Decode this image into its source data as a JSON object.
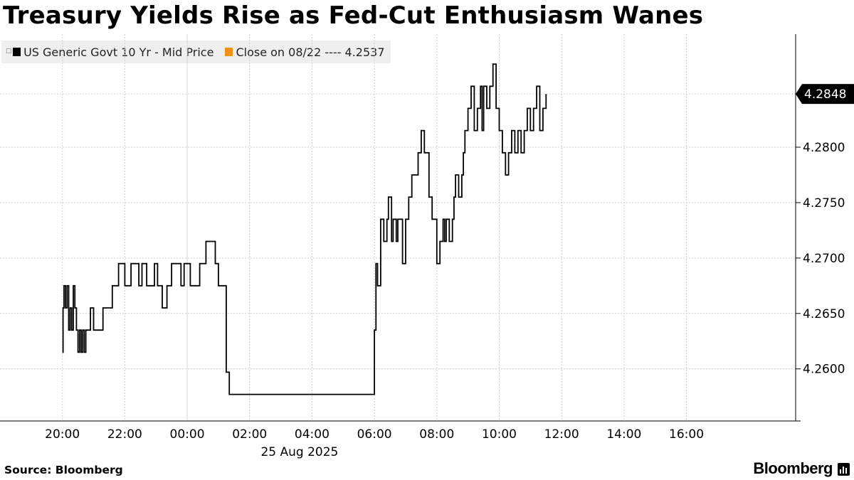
{
  "title": "Treasury Yields Rise as Fed-Cut Enthusiasm Wanes",
  "legend": {
    "series_label": "US Generic Govt 10 Yr - Mid Price",
    "close_label": "Close on 08/22 ---- 4.2537"
  },
  "footer": {
    "source": "Source: Bloomberg",
    "brand": "Bloomberg"
  },
  "colors": {
    "series": "#000000",
    "close": "#f0900c",
    "grid": "#cfcfcf",
    "legend_bg": "#efefef"
  },
  "chart_data": {
    "type": "line",
    "step": true,
    "title": "Treasury Yields Rise as Fed-Cut Enthusiasm Wanes",
    "series": [
      {
        "name": "US Generic Govt 10 Yr - Mid Price",
        "x_hours": [
          20.0,
          20.02,
          20.05,
          20.1,
          20.15,
          20.2,
          20.25,
          20.3,
          20.35,
          20.4,
          20.45,
          20.5,
          20.55,
          20.6,
          20.65,
          20.7,
          20.75,
          20.8,
          20.9,
          21.0,
          21.1,
          21.2,
          21.3,
          21.5,
          21.6,
          21.8,
          22.0,
          22.2,
          22.45,
          22.55,
          22.7,
          22.8,
          22.95,
          23.05,
          23.2,
          23.35,
          23.5,
          23.7,
          23.8,
          23.9,
          24.1,
          24.4,
          24.6,
          24.9,
          25.0,
          25.05,
          25.2,
          25.25,
          25.35,
          25.45,
          25.55,
          25.65,
          25.75,
          25.85,
          26.2,
          26.6,
          27.0,
          28.0,
          29.0,
          29.9,
          30.0,
          30.05,
          30.1,
          30.2,
          30.3,
          30.4,
          30.45,
          30.55,
          30.6,
          30.7,
          30.75,
          30.9,
          31.0,
          31.1,
          31.2,
          31.4,
          31.5,
          31.6,
          31.75,
          31.85,
          32.0,
          32.1,
          32.2,
          32.25,
          32.3,
          32.4,
          32.5,
          32.55,
          32.6,
          32.7,
          32.8,
          32.85,
          32.9,
          33.0,
          33.1,
          33.2,
          33.3,
          33.4,
          33.45,
          33.5,
          33.6,
          33.7,
          33.8,
          33.9,
          34.0,
          34.1,
          34.2,
          34.3,
          34.4,
          34.5,
          34.6,
          34.7,
          34.8,
          34.9,
          35.0,
          35.1,
          35.2,
          35.3,
          35.4,
          35.5
        ],
        "values": [
          4.2615,
          4.2655,
          4.2675,
          4.2655,
          4.2675,
          4.2635,
          4.2655,
          4.2635,
          4.2675,
          4.2655,
          4.2635,
          4.2615,
          4.2635,
          4.2615,
          4.2635,
          4.2615,
          4.2635,
          4.2635,
          4.2655,
          4.2635,
          4.2635,
          4.2635,
          4.2655,
          4.2655,
          4.2675,
          4.2695,
          4.2675,
          4.2695,
          4.2675,
          4.2695,
          4.2675,
          4.2675,
          4.2695,
          4.2675,
          4.2655,
          4.2675,
          4.2695,
          4.2695,
          4.2675,
          4.2695,
          4.2675,
          4.2695,
          4.2715,
          4.2695,
          4.2675,
          4.2675,
          4.2675,
          4.2597,
          4.2577,
          4.2577,
          4.2577,
          4.2577,
          4.2577,
          4.2577,
          4.2577,
          4.2577,
          4.2577,
          4.2577,
          4.2577,
          4.2577,
          4.2635,
          4.2695,
          4.2675,
          4.2735,
          4.2715,
          4.2735,
          4.2755,
          4.2715,
          4.2735,
          4.2715,
          4.2735,
          4.2695,
          4.2735,
          4.2755,
          4.2775,
          4.2795,
          4.2815,
          4.2795,
          4.2755,
          4.2735,
          4.2695,
          4.2715,
          4.2735,
          4.2715,
          4.2735,
          4.2715,
          4.2735,
          4.2755,
          4.2775,
          4.2755,
          4.2775,
          4.2795,
          4.2815,
          4.2835,
          4.2855,
          4.2815,
          4.2835,
          4.2855,
          4.2815,
          4.2855,
          4.2835,
          4.2855,
          4.2875,
          4.2835,
          4.2815,
          4.2795,
          4.2775,
          4.2795,
          4.2815,
          4.2795,
          4.2815,
          4.2795,
          4.2815,
          4.2835,
          4.2815,
          4.2835,
          4.2855,
          4.2815,
          4.2835,
          4.2848
        ]
      }
    ],
    "last_value_label": "4.2848",
    "close_value": 4.2537,
    "x_ticks": [
      {
        "hour": 20,
        "label": "20:00"
      },
      {
        "hour": 22,
        "label": "22:00"
      },
      {
        "hour": 24,
        "label": "00:00"
      },
      {
        "hour": 26,
        "label": "02:00"
      },
      {
        "hour": 28,
        "label": "04:00"
      },
      {
        "hour": 30,
        "label": "06:00"
      },
      {
        "hour": 32,
        "label": "08:00"
      },
      {
        "hour": 34,
        "label": "10:00"
      },
      {
        "hour": 36,
        "label": "12:00"
      },
      {
        "hour": 38,
        "label": "14:00"
      },
      {
        "hour": 40,
        "label": "16:00"
      }
    ],
    "x_sublabel": {
      "hour": 27.6,
      "label": "25 Aug 2025"
    },
    "xlim": [
      18.0,
      43.5
    ],
    "y_ticks": [
      4.26,
      4.265,
      4.27,
      4.275,
      4.28
    ],
    "y_tick_labels": [
      "4.2600",
      "4.2650",
      "4.2700",
      "4.2750",
      "4.2800"
    ],
    "ylim": [
      4.2553,
      4.2902
    ],
    "grid": true,
    "legend_position": "top-left",
    "y_axis_side": "right"
  }
}
